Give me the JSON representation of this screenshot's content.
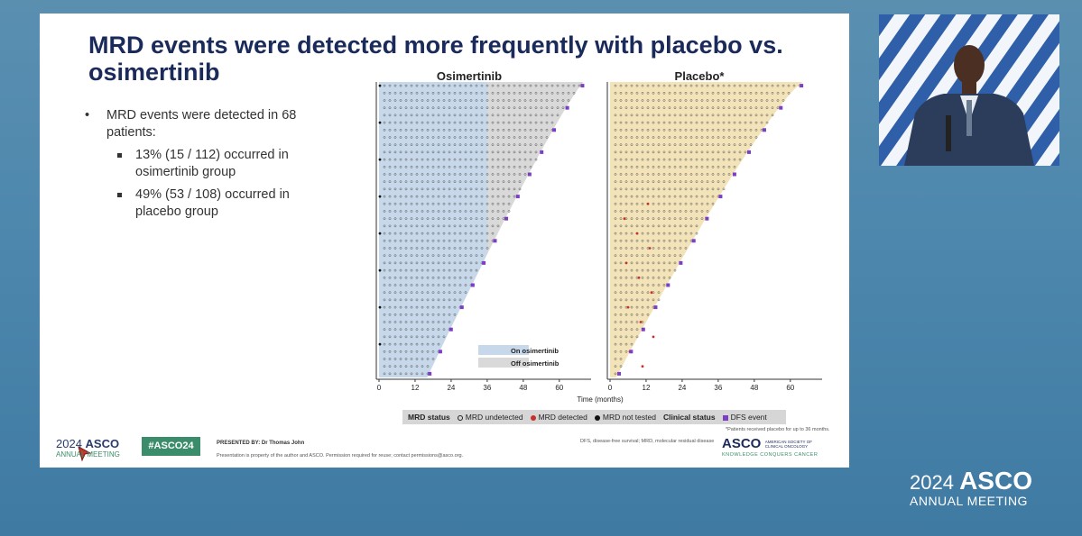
{
  "slide": {
    "title": "MRD events were detected more frequently with placebo vs. osimertinib",
    "bullets": {
      "main": "MRD events were detected in 68 patients:",
      "sub1": "13% (15 / 112) occurred in osimertinib group",
      "sub2": "49% (53 / 108) occurred in placebo group"
    }
  },
  "chart_data": [
    {
      "type": "scatter",
      "title": "Osimertinib",
      "xlabel": "Time (months)",
      "x_ticks": [
        0,
        12,
        24,
        36,
        48,
        60
      ],
      "legend_inset": [
        "On osimertinib",
        "Off osimertinib"
      ],
      "colors": {
        "on": "#c6d8ea",
        "off": "#d9d9d9"
      }
    },
    {
      "type": "scatter",
      "title": "Placebo*",
      "xlabel": "Time (months)",
      "x_ticks": [
        0,
        12,
        24,
        36,
        48,
        60
      ],
      "colors": {
        "fill": "#f3e3b8"
      }
    }
  ],
  "legend": {
    "mrd_status_label": "MRD status",
    "undetected": "MRD undetected",
    "detected": "MRD detected",
    "not_tested": "MRD not tested",
    "clinical_status_label": "Clinical status",
    "dfs_event": "DFS event",
    "colors": {
      "detected": "#c8312b",
      "not_tested": "#111111",
      "dfs": "#7b3fc4"
    }
  },
  "footer": {
    "year": "2024",
    "asco": "ASCO",
    "annual_meeting": "ANNUAL MEETING",
    "hashtag": "#ASCO24",
    "presented_by": "PRESENTED BY: Dr Thomas John",
    "property": "Presentation is property of the author and ASCO. Permission required for reuse; contact permissions@asco.org.",
    "abbreviations": "DFS, disease-free survival; MRD, molecular residual disease",
    "patients_note": "*Patients received placebo for up to 36 months.",
    "asco_society_line1": "AMERICAN SOCIETY OF",
    "asco_society_line2": "CLINICAL ONCOLOGY",
    "tagline": "KNOWLEDGE CONQUERS CANCER"
  },
  "corner": {
    "year": "2024",
    "asco": "ASCO",
    "annual_meeting": "ANNUAL MEETING"
  }
}
